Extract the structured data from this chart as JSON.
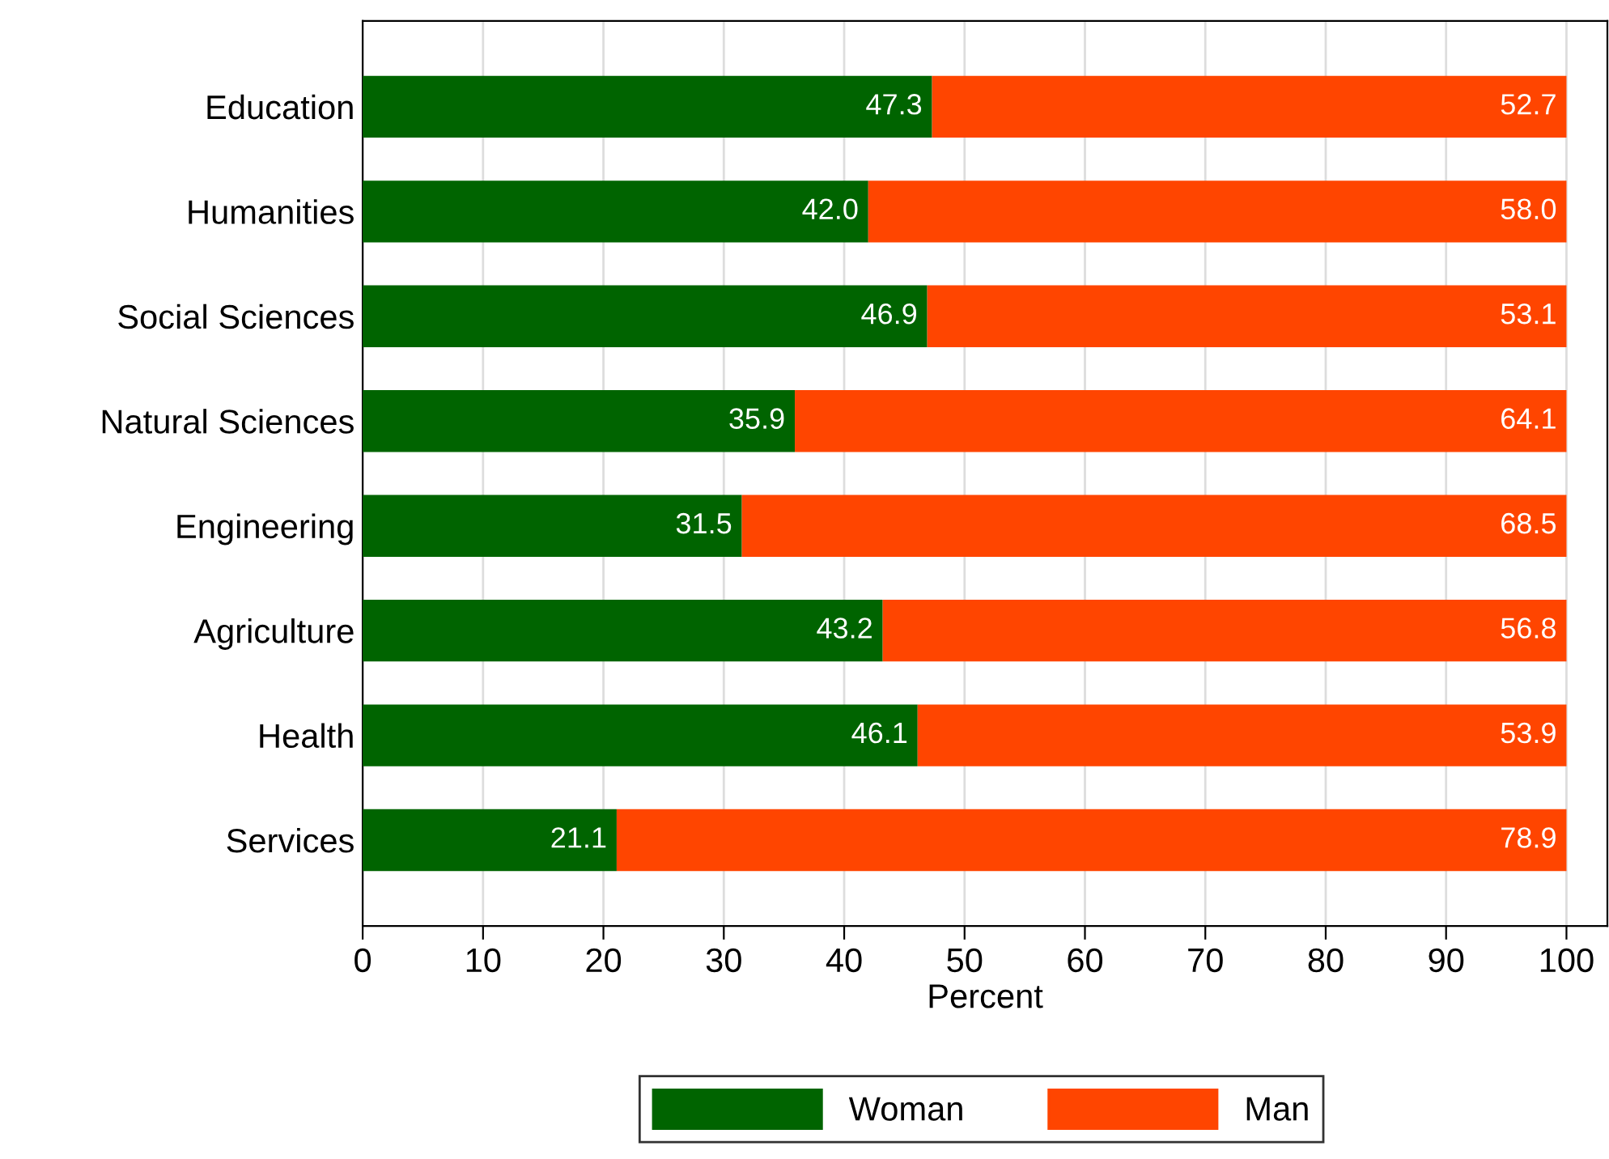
{
  "chart_data": {
    "type": "bar",
    "orientation": "horizontal",
    "stacked": true,
    "xlabel": "Percent",
    "categories": [
      "Education",
      "Humanities",
      "Social Sciences",
      "Natural Sciences",
      "Engineering",
      "Agriculture",
      "Health",
      "Services"
    ],
    "series": [
      {
        "name": "Woman",
        "color": "#006400",
        "values": [
          47.3,
          42.0,
          46.9,
          35.9,
          31.5,
          43.2,
          46.1,
          21.1
        ],
        "value_labels": [
          "47.3",
          "42.0",
          "46.9",
          "35.9",
          "31.5",
          "43.2",
          "46.1",
          "21.1"
        ]
      },
      {
        "name": "Man",
        "color": "#ff4500",
        "values": [
          52.7,
          58.0,
          53.1,
          64.1,
          68.5,
          56.8,
          53.9,
          78.9
        ],
        "value_labels": [
          "52.7",
          "58.0",
          "53.1",
          "64.1",
          "68.5",
          "56.8",
          "53.9",
          "78.9"
        ]
      }
    ],
    "xlim": [
      0,
      103.4
    ],
    "xticks": [
      0,
      10,
      20,
      30,
      40,
      50,
      60,
      70,
      80,
      90,
      100
    ],
    "grid": "x",
    "legend": "bottom"
  }
}
